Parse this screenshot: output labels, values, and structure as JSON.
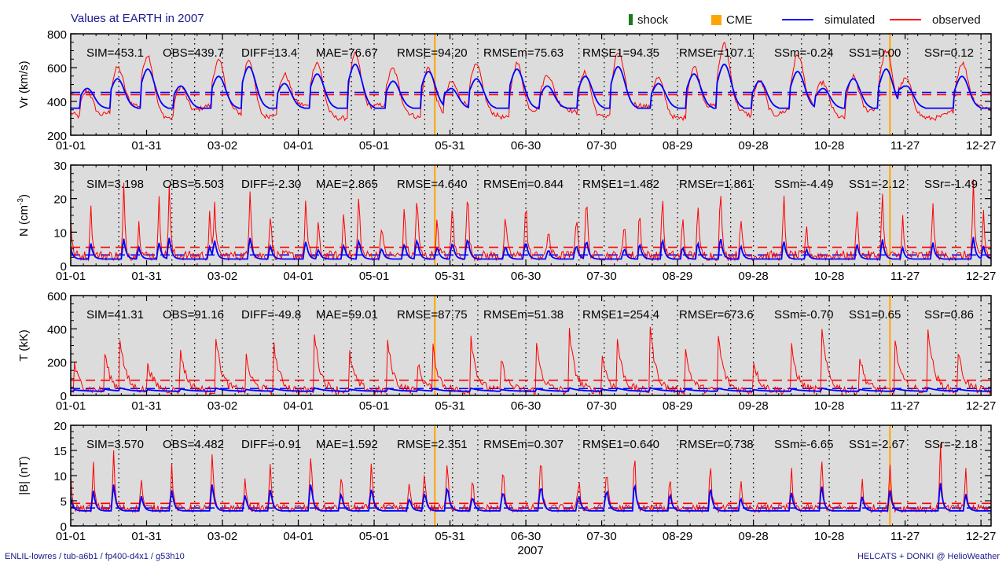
{
  "title": "Values at EARTH in 2007",
  "footer": {
    "left": "ENLIL-lowres / tub-a6b1 / fp400-d4x1 / g53h10",
    "right": "HELCATS + DONKI @ HelioWeather"
  },
  "legend": [
    {
      "key": "shock",
      "label": "shock",
      "color": "#1a7a1a",
      "kind": "bar"
    },
    {
      "key": "cme",
      "label": "CME",
      "color": "#ffa500",
      "kind": "square"
    },
    {
      "key": "simulated",
      "label": "simulated",
      "color": "#0000ff",
      "kind": "line"
    },
    {
      "key": "observed",
      "label": "observed",
      "color": "#ff0000",
      "kind": "line"
    }
  ],
  "chart_data": {
    "type": "line",
    "title": "Values at EARTH in 2007",
    "xlabel": "2007",
    "x_range_days": [
      1,
      365
    ],
    "x_ticks": [
      {
        "day": 1,
        "label": "01-01"
      },
      {
        "day": 31,
        "label": "01-31"
      },
      {
        "day": 61,
        "label": "03-02"
      },
      {
        "day": 91,
        "label": "04-01"
      },
      {
        "day": 121,
        "label": "05-01"
      },
      {
        "day": 151,
        "label": "05-31"
      },
      {
        "day": 181,
        "label": "06-30"
      },
      {
        "day": 211,
        "label": "07-30"
      },
      {
        "day": 241,
        "label": "08-29"
      },
      {
        "day": 271,
        "label": "09-28"
      },
      {
        "day": 301,
        "label": "10-28"
      },
      {
        "day": 331,
        "label": "11-27"
      },
      {
        "day": 361,
        "label": "12-27"
      }
    ],
    "dotted_grid_days": [
      20,
      41,
      50,
      61,
      81,
      91,
      101,
      112,
      121,
      141,
      152,
      162,
      181,
      202,
      212,
      231,
      241,
      262,
      271,
      290,
      301,
      321,
      332,
      351,
      361
    ],
    "cme_arrival_days": [
      145,
      325
    ],
    "colors": {
      "simulated": "#0000ff",
      "observed": "#ff0000",
      "cme": "#ffa500",
      "background": "#dcdcdc"
    },
    "panels": [
      {
        "key": "vr",
        "ylabel": "Vr (km/s)",
        "ylim": [
          200,
          800
        ],
        "yticks": [
          200,
          400,
          600,
          800
        ],
        "sim_mean": 453.1,
        "obs_mean": 439.7,
        "stats": [
          {
            "name": "SIM",
            "value": "453.1"
          },
          {
            "name": "OBS",
            "value": "439.7"
          },
          {
            "name": "DIFF",
            "value": "13.4"
          },
          {
            "name": "MAE",
            "value": "76.67"
          },
          {
            "name": "RMSE",
            "value": "94.20"
          },
          {
            "name": "RMSEm",
            "value": "75.63"
          },
          {
            "name": "RMSE1",
            "value": "94.35"
          },
          {
            "name": "RMSEr",
            "value": "107.1"
          },
          {
            "name": "SSm",
            "value": "-0.24"
          },
          {
            "name": "SS1",
            "value": "0.00"
          },
          {
            "name": "SSr",
            "value": "0.12"
          }
        ],
        "series_profile": {
          "kind": "speed",
          "base": 340,
          "peak": 700,
          "sim_base": 360,
          "sim_peak": 620,
          "events_days": [
            6,
            18,
            30,
            43,
            58,
            70,
            84,
            97,
            112,
            127,
            141,
            150,
            160,
            176,
            188,
            203,
            216,
            232,
            246,
            258,
            272,
            287,
            297,
            309,
            322,
            330,
            352
          ]
        }
      },
      {
        "key": "n",
        "ylabel": "N (cm^-3)",
        "ylim": [
          0,
          30
        ],
        "yticks": [
          0,
          10,
          20,
          30
        ],
        "sim_mean": 3.198,
        "obs_mean": 5.503,
        "stats": [
          {
            "name": "SIM",
            "value": "3.198"
          },
          {
            "name": "OBS",
            "value": "5.503"
          },
          {
            "name": "DIFF",
            "value": "-2.30"
          },
          {
            "name": "MAE",
            "value": "2.865"
          },
          {
            "name": "RMSE",
            "value": "4.640"
          },
          {
            "name": "RMSEm",
            "value": "0.844"
          },
          {
            "name": "RMSE1",
            "value": "1.482"
          },
          {
            "name": "RMSEr",
            "value": "1.861"
          },
          {
            "name": "SSm",
            "value": "-4.49"
          },
          {
            "name": "SS1",
            "value": "-2.12"
          },
          {
            "name": "SSr",
            "value": "-1.49"
          }
        ],
        "series_profile": {
          "kind": "spiky",
          "base": 3,
          "peak": 28,
          "sim_base": 2,
          "sim_peak": 9,
          "events_days": [
            1,
            9,
            22,
            28,
            36,
            40,
            56,
            58,
            72,
            80,
            94,
            99,
            109,
            115,
            124,
            133,
            138,
            146,
            152,
            158,
            173,
            181,
            190,
            201,
            205,
            220,
            226,
            235,
            243,
            249,
            258,
            266,
            283,
            292,
            312,
            322,
            330,
            342,
            358,
            362
          ]
        }
      },
      {
        "key": "t",
        "ylabel": "T (kK)",
        "ylim": [
          0,
          600
        ],
        "yticks": [
          0,
          200,
          400,
          600
        ],
        "sim_mean": 41.31,
        "obs_mean": 91.16,
        "stats": [
          {
            "name": "SIM",
            "value": "41.31"
          },
          {
            "name": "OBS",
            "value": "91.16"
          },
          {
            "name": "DIFF",
            "value": "-49.8"
          },
          {
            "name": "MAE",
            "value": "59.01"
          },
          {
            "name": "RMSE",
            "value": "87.75"
          },
          {
            "name": "RMSEm",
            "value": "51.38"
          },
          {
            "name": "RMSE1",
            "value": "254.4"
          },
          {
            "name": "RMSEr",
            "value": "673.6"
          },
          {
            "name": "SSm",
            "value": "-0.70"
          },
          {
            "name": "SS1",
            "value": "0.65"
          },
          {
            "name": "SSr",
            "value": "0.86"
          }
        ],
        "series_profile": {
          "kind": "temperature",
          "base": 30,
          "peak": 450,
          "sim_base": 25,
          "sim_peak": 80,
          "events_days": [
            2,
            14,
            20,
            31,
            44,
            58,
            70,
            81,
            97,
            111,
            126,
            138,
            144,
            159,
            171,
            185,
            198,
            211,
            217,
            230,
            244,
            257,
            271,
            286,
            298,
            313,
            327,
            340,
            352
          ]
        }
      },
      {
        "key": "b",
        "ylabel": "|B| (nT)",
        "ylim": [
          0,
          20
        ],
        "yticks": [
          0,
          5,
          10,
          15,
          20
        ],
        "sim_mean": 3.57,
        "obs_mean": 4.482,
        "stats": [
          {
            "name": "SIM",
            "value": "3.570"
          },
          {
            "name": "OBS",
            "value": "4.482"
          },
          {
            "name": "DIFF",
            "value": "-0.91"
          },
          {
            "name": "MAE",
            "value": "1.592"
          },
          {
            "name": "RMSE",
            "value": "2.351"
          },
          {
            "name": "RMSEm",
            "value": "0.307"
          },
          {
            "name": "RMSE1",
            "value": "0.640"
          },
          {
            "name": "RMSEr",
            "value": "0.738"
          },
          {
            "name": "SSm",
            "value": "-6.65"
          },
          {
            "name": "SS1",
            "value": "-2.67"
          },
          {
            "name": "SSr",
            "value": "-2.18"
          }
        ],
        "series_profile": {
          "kind": "field",
          "base": 3.5,
          "peak": 17,
          "sim_base": 3,
          "sim_peak": 9,
          "events_days": [
            1,
            10,
            18,
            29,
            41,
            57,
            70,
            80,
            96,
            108,
            120,
            135,
            141,
            150,
            160,
            172,
            187,
            202,
            213,
            224,
            238,
            254,
            266,
            286,
            298,
            314,
            325,
            345,
            355
          ]
        }
      }
    ]
  }
}
